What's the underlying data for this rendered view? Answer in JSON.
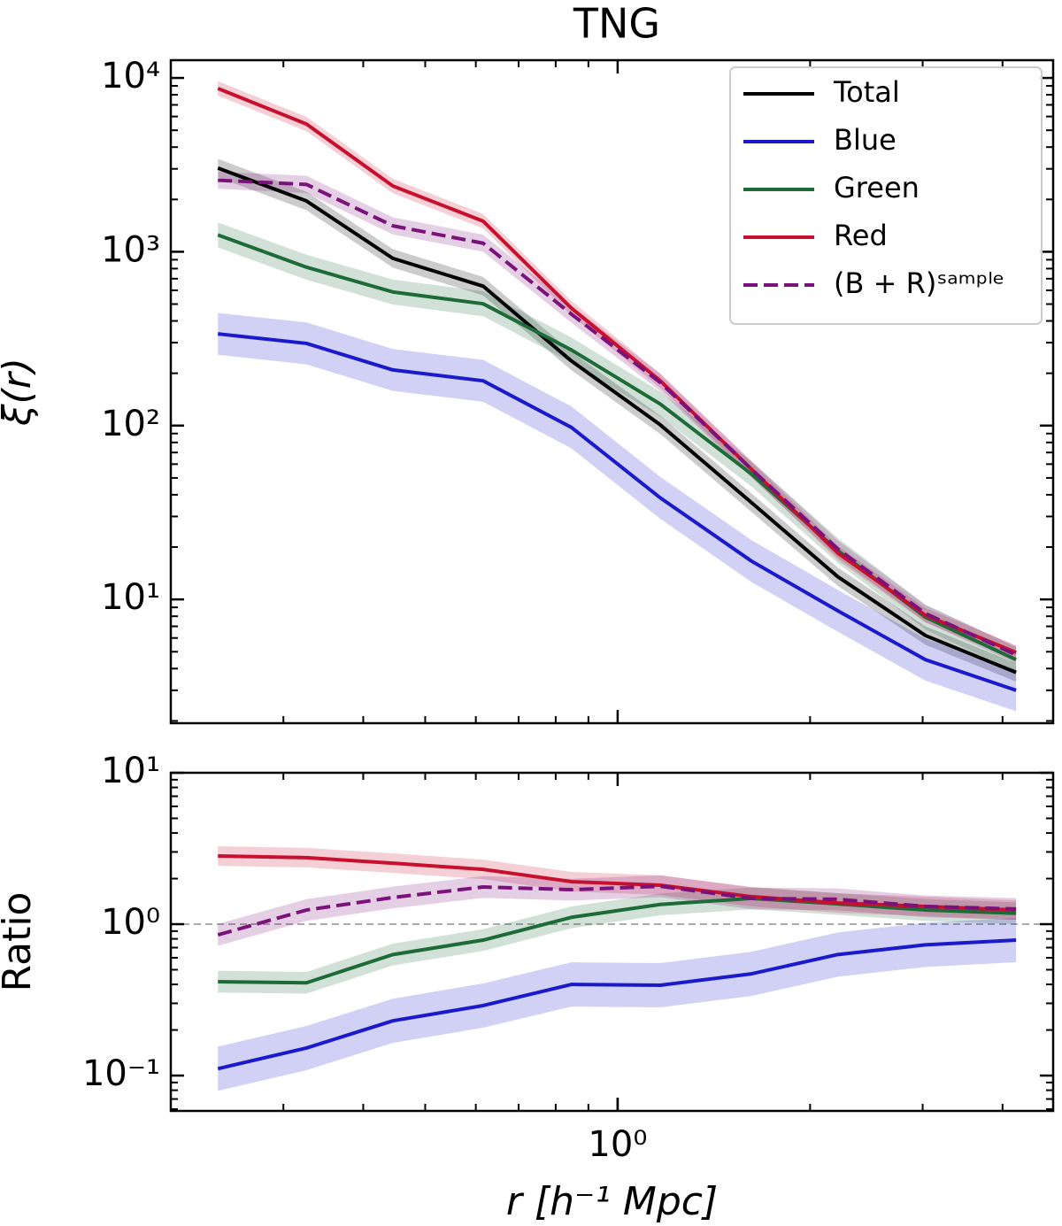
{
  "chart_data": [
    {
      "type": "line",
      "title": "TNG",
      "ylabel": "ξ(r)",
      "log_x": true,
      "log_y": true,
      "x": [
        0.237,
        0.326,
        0.445,
        0.616,
        0.847,
        1.166,
        1.62,
        2.21,
        3.03,
        4.2
      ],
      "xlim": [
        0.2,
        4.8
      ],
      "ylim": [
        1.94,
        12650
      ],
      "yticks": [
        {
          "value": 10,
          "label": "10¹"
        },
        {
          "value": 100,
          "label": "10²"
        },
        {
          "value": 1000,
          "label": "10³"
        },
        {
          "value": 10000,
          "label": "10⁴"
        }
      ],
      "legend": "upper right",
      "series": [
        {
          "name": "Total",
          "color": "#000000",
          "band": 1.13,
          "values": [
            3030,
            1960,
            916,
            634,
            235,
            101,
            36,
            13.5,
            6.2,
            3.8
          ]
        },
        {
          "name": "Blue",
          "color": "#1a1acc",
          "band": 1.32,
          "values": [
            337,
            297,
            209,
            181,
            97.5,
            38.4,
            16.6,
            8.6,
            4.5,
            3.0
          ]
        },
        {
          "name": "Green",
          "color": "#1d6b37",
          "band": 1.18,
          "values": [
            1250,
            815,
            587,
            502,
            272,
            133,
            52.6,
            19.1,
            7.9,
            4.5
          ]
        },
        {
          "name": "Red",
          "color": "#c8102e",
          "band": 1.1,
          "values": [
            8700,
            5430,
            2390,
            1500,
            473,
            181,
            56,
            18.5,
            8.1,
            4.95
          ]
        },
        {
          "name": "(B + R)ˢᵃᵐᵖˡᵉ",
          "color": "#7b117b",
          "dashed": true,
          "band": 1.12,
          "values": [
            2580,
            2440,
            1410,
            1120,
            437,
            177,
            56,
            19.5,
            8.3,
            4.8
          ]
        }
      ]
    },
    {
      "type": "line",
      "ylabel": "Ratio",
      "xlabel": "r [h⁻¹ Mpc]",
      "log_x": true,
      "log_y": true,
      "x": [
        0.237,
        0.326,
        0.445,
        0.616,
        0.847,
        1.166,
        1.62,
        2.21,
        3.03,
        4.2
      ],
      "xlim": [
        0.2,
        4.8
      ],
      "ylim": [
        0.0584,
        10
      ],
      "xticks": [
        {
          "value": 1,
          "label": "10⁰"
        }
      ],
      "yticks": [
        {
          "value": 0.1,
          "label": "10⁻¹"
        },
        {
          "value": 1,
          "label": "10⁰"
        },
        {
          "value": 10,
          "label": "10¹"
        }
      ],
      "reference_line": 1,
      "series": [
        {
          "name": "Blue",
          "color": "#1a1acc",
          "band": 1.4,
          "values": [
            0.111,
            0.152,
            0.23,
            0.29,
            0.4,
            0.395,
            0.47,
            0.63,
            0.73,
            0.785
          ]
        },
        {
          "name": "Green",
          "color": "#1d6b37",
          "band": 1.18,
          "values": [
            0.417,
            0.41,
            0.63,
            0.785,
            1.11,
            1.35,
            1.48,
            1.36,
            1.24,
            1.18
          ]
        },
        {
          "name": "Red",
          "color": "#c8102e",
          "band": 1.16,
          "values": [
            2.82,
            2.75,
            2.53,
            2.3,
            1.91,
            1.81,
            1.52,
            1.38,
            1.31,
            1.24
          ]
        },
        {
          "name": "(B + R)ˢᵃᵐᵖˡᵉ",
          "color": "#7b117b",
          "dashed": true,
          "band": 1.18,
          "values": [
            0.85,
            1.24,
            1.5,
            1.76,
            1.69,
            1.78,
            1.48,
            1.46,
            1.31,
            1.26
          ]
        }
      ]
    }
  ]
}
